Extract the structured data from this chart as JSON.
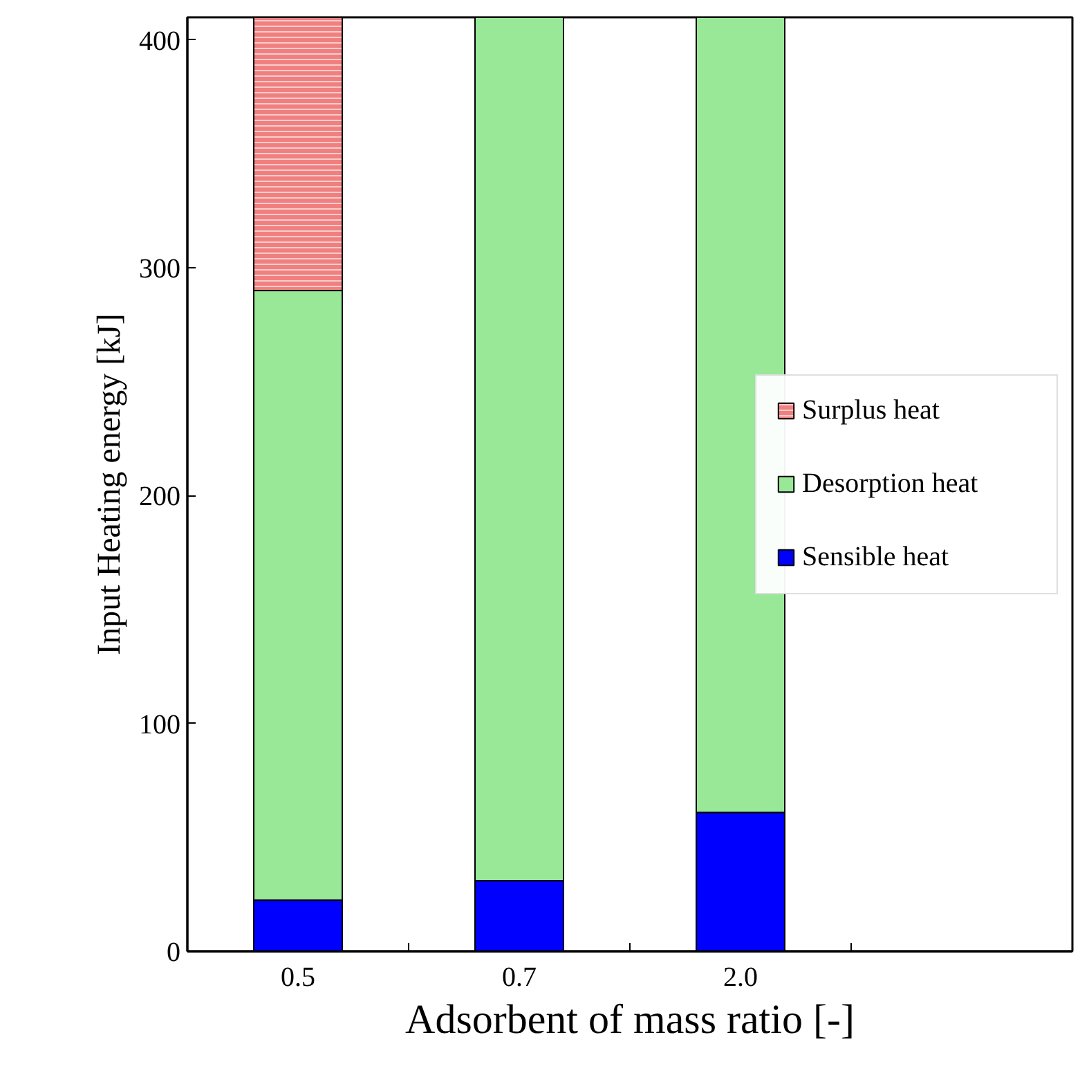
{
  "chart_data": {
    "type": "bar",
    "stacked": true,
    "xlabel": "Adsorbent of mass ratio [-]",
    "ylabel": "Input Heating energy [kJ]",
    "categories": [
      "0.5",
      "0.7",
      "2.0",
      null
    ],
    "series": [
      {
        "name": "Sensible heat",
        "color": "#0000ff",
        "values": [
          22.5,
          31,
          61,
          null
        ]
      },
      {
        "name": "Desorption heat",
        "color": "#98e898",
        "values": [
          267.5,
          379,
          349,
          null
        ]
      },
      {
        "name": "Surplus heat",
        "color": "#f08080",
        "values": [
          120,
          null,
          null,
          null
        ]
      }
    ],
    "ylim": [
      0,
      410
    ],
    "yticks": [
      0,
      100,
      200,
      300,
      400
    ],
    "grid": false,
    "legend": "right"
  }
}
